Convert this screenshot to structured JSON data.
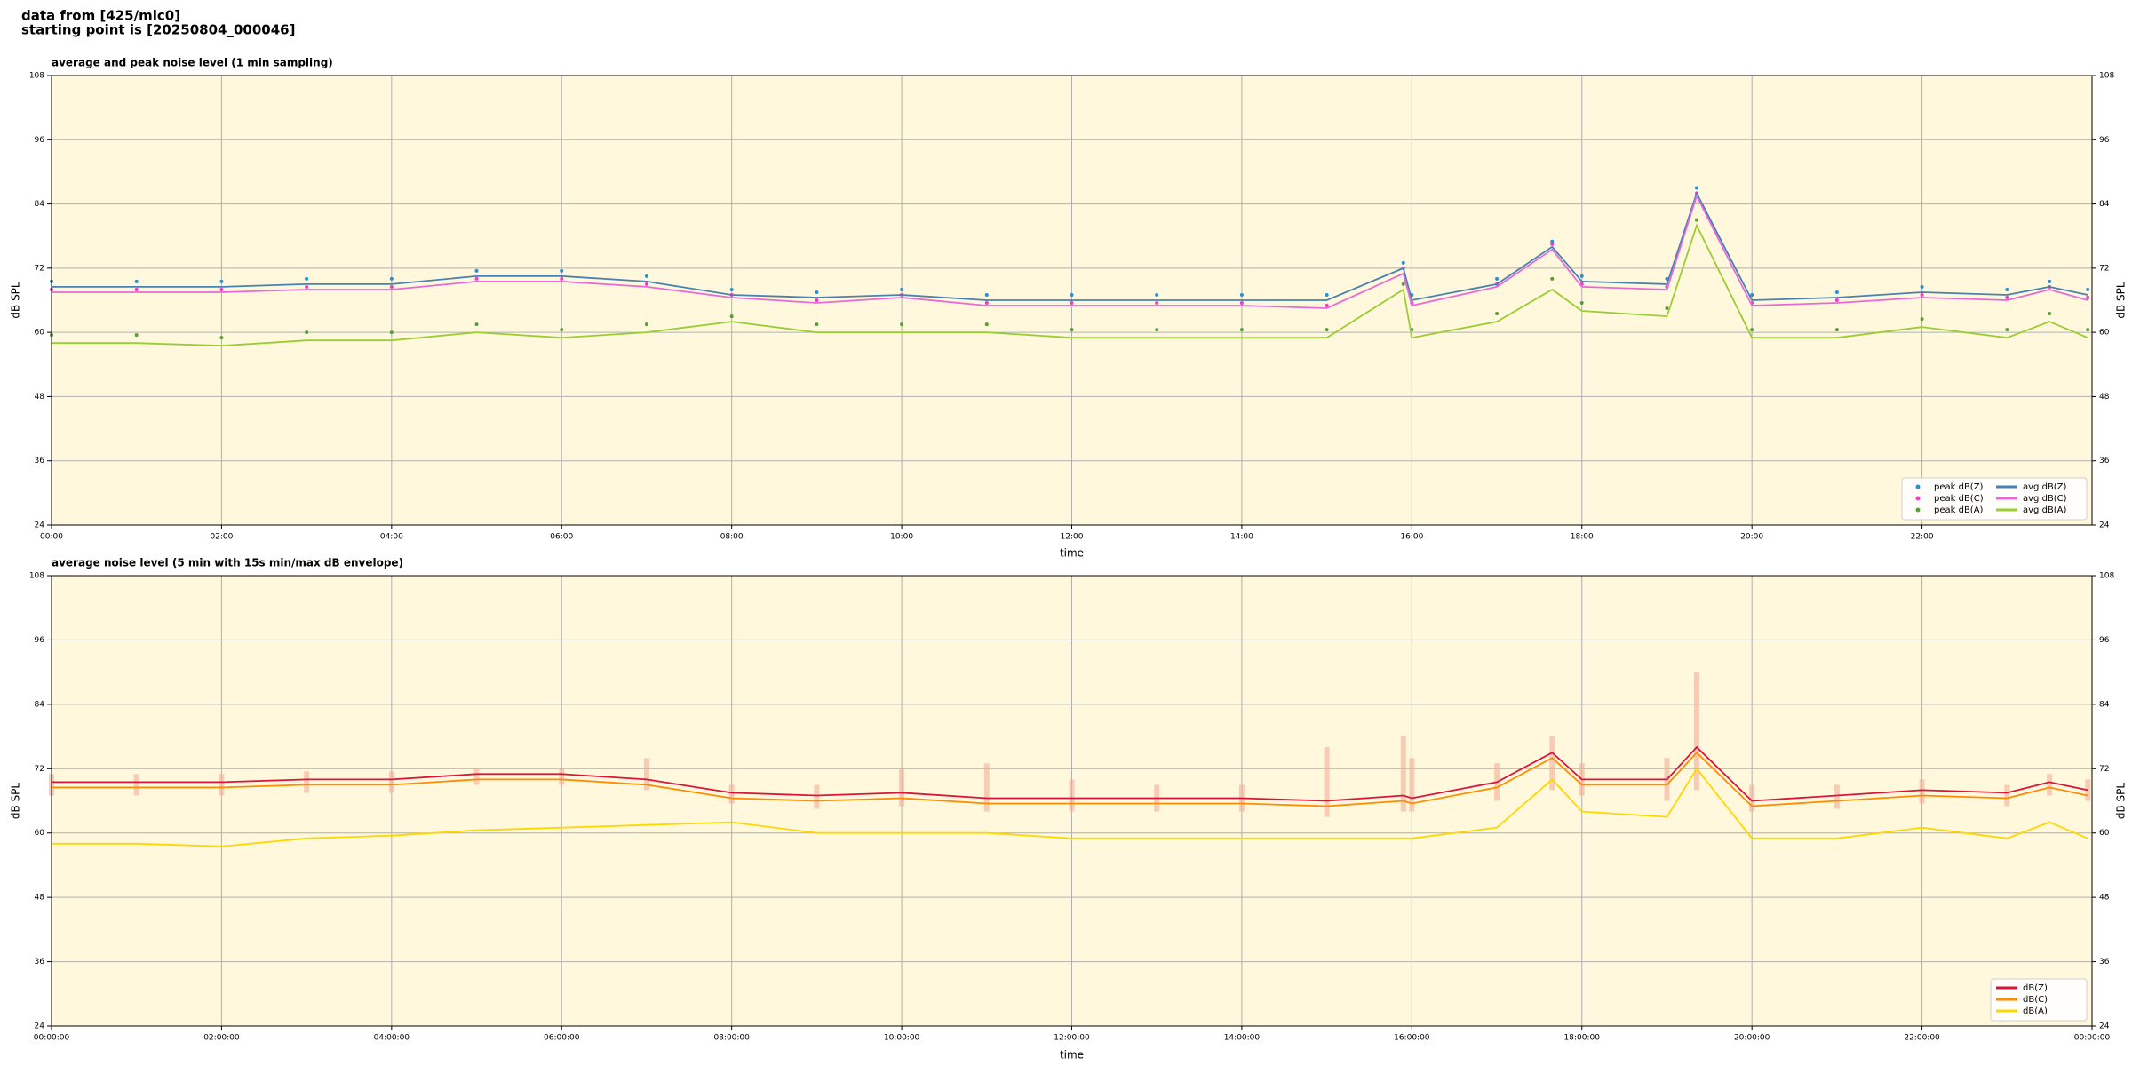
{
  "header": [
    "data from [425/mic0]",
    "starting point is [20250804_000046]"
  ],
  "chart_data": [
    {
      "type": "line",
      "title": "average and peak noise level (1 min sampling)",
      "xlabel": "time",
      "ylabel": "dB SPL",
      "x": [
        0,
        1,
        2,
        3,
        4,
        5,
        6,
        7,
        8,
        9,
        10,
        11,
        12,
        13,
        14,
        15,
        15.9,
        16,
        17,
        17.65,
        18,
        19,
        19.35,
        20,
        21,
        22,
        23,
        23.5,
        23.95
      ],
      "xlim": [
        0,
        24
      ],
      "xticks": [
        {
          "value": 0,
          "label": "00:00"
        },
        {
          "value": 2,
          "label": "02:00"
        },
        {
          "value": 4,
          "label": "04:00"
        },
        {
          "value": 6,
          "label": "06:00"
        },
        {
          "value": 8,
          "label": "08:00"
        },
        {
          "value": 10,
          "label": "10:00"
        },
        {
          "value": 12,
          "label": "12:00"
        },
        {
          "value": 14,
          "label": "14:00"
        },
        {
          "value": 16,
          "label": "16:00"
        },
        {
          "value": 18,
          "label": "18:00"
        },
        {
          "value": 20,
          "label": "20:00"
        },
        {
          "value": 22,
          "label": "22:00"
        }
      ],
      "ylim": [
        24,
        108
      ],
      "yticks": [
        24,
        36,
        48,
        60,
        72,
        84,
        96,
        108
      ],
      "grid": true,
      "legend": "lower right",
      "legend_columns": 2,
      "series": [
        {
          "name": "peak dB(Z)",
          "style": "scatter",
          "color": "#2a8fd6",
          "values": [
            69.5,
            69.5,
            69.5,
            70,
            70,
            71.5,
            71.5,
            70.5,
            68,
            67.5,
            68,
            67,
            67,
            67,
            67,
            67,
            73,
            67,
            70,
            77,
            70.5,
            70,
            87,
            67,
            67.5,
            68.5,
            68,
            69.5,
            68
          ]
        },
        {
          "name": "peak dB(C)",
          "style": "scatter",
          "color": "#f03cc8",
          "values": [
            68,
            68,
            68,
            68.5,
            68.5,
            70,
            70,
            69,
            67,
            66,
            67,
            65.5,
            65.5,
            65.5,
            65.5,
            65,
            72,
            65.5,
            69,
            76.5,
            69,
            68.5,
            86,
            65.5,
            66,
            67,
            66.5,
            68.5,
            66.5
          ]
        },
        {
          "name": "peak dB(A)",
          "style": "scatter",
          "color": "#5a9e3a",
          "values": [
            59.5,
            59.5,
            59,
            60,
            60,
            61.5,
            60.5,
            61.5,
            63,
            61.5,
            61.5,
            61.5,
            60.5,
            60.5,
            60.5,
            60.5,
            69,
            60.5,
            63.5,
            70,
            65.5,
            64.5,
            81,
            60.5,
            60.5,
            62.5,
            60.5,
            63.5,
            60.5
          ]
        },
        {
          "name": "avg dB(Z)",
          "style": "line",
          "color": "#4682b4",
          "values": [
            68.5,
            68.5,
            68.5,
            69,
            69,
            70.5,
            70.5,
            69.5,
            67,
            66.5,
            67,
            66,
            66,
            66,
            66,
            66,
            72,
            66,
            69,
            76,
            69.5,
            69,
            86,
            66,
            66.5,
            67.5,
            67,
            68.5,
            67
          ]
        },
        {
          "name": "avg dB(C)",
          "style": "line",
          "color": "#e86ad8",
          "values": [
            67.5,
            67.5,
            67.5,
            68,
            68,
            69.5,
            69.5,
            68.5,
            66.5,
            65.5,
            66.5,
            65,
            65,
            65,
            65,
            64.5,
            71,
            65,
            68.5,
            75.5,
            68.5,
            68,
            85.5,
            65,
            65.5,
            66.5,
            66,
            68,
            66
          ]
        },
        {
          "name": "avg dB(A)",
          "style": "line",
          "color": "#9acd32",
          "values": [
            58,
            58,
            57.5,
            58.5,
            58.5,
            60,
            59,
            60,
            62,
            60,
            60,
            60,
            59,
            59,
            59,
            59,
            68,
            59,
            62,
            68,
            64,
            63,
            80,
            59,
            59,
            61,
            59,
            62,
            59
          ]
        }
      ]
    },
    {
      "type": "line",
      "title": "average noise level (5 min with 15s min/max dB envelope)",
      "xlabel": "time",
      "ylabel": "dB SPL",
      "x": [
        0,
        1,
        2,
        3,
        4,
        5,
        6,
        7,
        8,
        9,
        10,
        11,
        12,
        13,
        14,
        15,
        15.9,
        16,
        17,
        17.65,
        18,
        19,
        19.35,
        20,
        21,
        22,
        23,
        23.5,
        23.95
      ],
      "xlim": [
        0,
        24
      ],
      "xticks": [
        {
          "value": 0,
          "label": "00:00:00"
        },
        {
          "value": 2,
          "label": "02:00:00"
        },
        {
          "value": 4,
          "label": "04:00:00"
        },
        {
          "value": 6,
          "label": "06:00:00"
        },
        {
          "value": 8,
          "label": "08:00:00"
        },
        {
          "value": 10,
          "label": "10:00:00"
        },
        {
          "value": 12,
          "label": "12:00:00"
        },
        {
          "value": 14,
          "label": "14:00:00"
        },
        {
          "value": 16,
          "label": "16:00:00"
        },
        {
          "value": 18,
          "label": "18:00:00"
        },
        {
          "value": 20,
          "label": "20:00:00"
        },
        {
          "value": 22,
          "label": "22:00:00"
        },
        {
          "value": 24,
          "label": "00:00:00"
        }
      ],
      "ylim": [
        24,
        108
      ],
      "yticks": [
        24,
        36,
        48,
        60,
        72,
        84,
        96,
        108
      ],
      "grid": true,
      "legend": "lower right",
      "legend_columns": 1,
      "envelope_color": "#f4b09a",
      "envelope_high": [
        71,
        71,
        71,
        71.5,
        71.5,
        72,
        72,
        74,
        69,
        69,
        72,
        73,
        70,
        69,
        69,
        76,
        78,
        74,
        73,
        78,
        73,
        74,
        90,
        69,
        69,
        70,
        69,
        71,
        70
      ],
      "envelope_low": [
        67,
        67,
        67,
        67.5,
        67.5,
        69,
        69,
        68,
        65.5,
        64.5,
        65,
        64,
        64,
        64,
        64,
        63,
        64,
        64,
        66,
        68,
        67,
        66,
        68,
        64,
        64.5,
        65.5,
        65,
        67,
        66
      ],
      "series": [
        {
          "name": "dB(Z)",
          "style": "line",
          "color": "#dc143c",
          "values": [
            69.5,
            69.5,
            69.5,
            70,
            70,
            71,
            71,
            70,
            67.5,
            67,
            67.5,
            66.5,
            66.5,
            66.5,
            66.5,
            66,
            67,
            66.5,
            69.5,
            75,
            70,
            70,
            76,
            66,
            67,
            68,
            67.5,
            69.5,
            68
          ]
        },
        {
          "name": "dB(C)",
          "style": "line",
          "color": "#ff8c00",
          "values": [
            68.5,
            68.5,
            68.5,
            69,
            69,
            70,
            70,
            69,
            66.5,
            66,
            66.5,
            65.5,
            65.5,
            65.5,
            65.5,
            65,
            66,
            65.5,
            68.5,
            74,
            69,
            69,
            75,
            65,
            66,
            67,
            66.5,
            68.5,
            67
          ]
        },
        {
          "name": "dB(A)",
          "style": "line",
          "color": "#ffd700",
          "values": [
            58,
            58,
            57.5,
            59,
            59.5,
            60.5,
            61,
            61.5,
            62,
            60,
            60,
            60,
            59,
            59,
            59,
            59,
            59,
            59,
            61,
            70,
            64,
            63,
            72,
            59,
            59,
            61,
            59,
            62,
            59
          ]
        }
      ]
    }
  ]
}
